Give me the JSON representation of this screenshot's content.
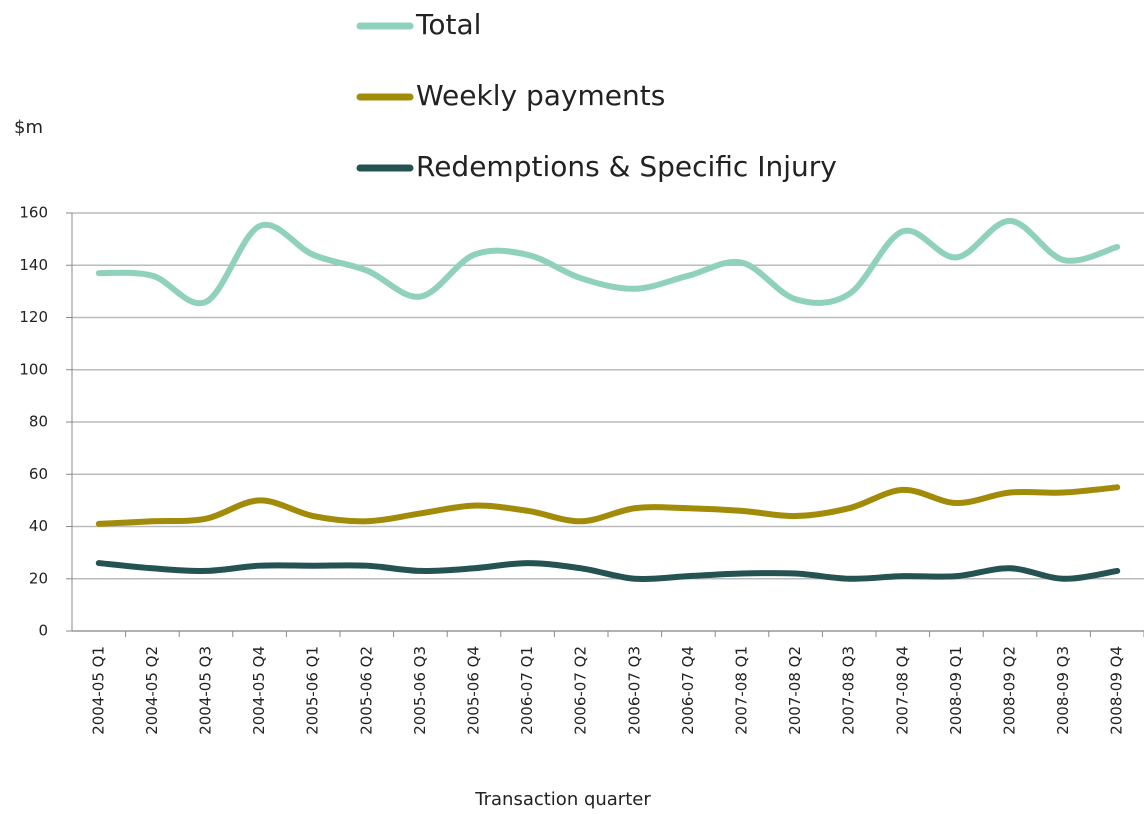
{
  "chart_data": {
    "type": "line",
    "y_label": "$m",
    "x_label": "Transaction quarter",
    "categories": [
      "2004-05 Q1",
      "2004-05 Q2",
      "2004-05 Q3",
      "2004-05 Q4",
      "2005-06 Q1",
      "2005-06 Q2",
      "2005-06 Q3",
      "2005-06 Q4",
      "2006-07 Q1",
      "2006-07 Q2",
      "2006-07 Q3",
      "2006-07 Q4",
      "2007-08 Q1",
      "2007-08 Q2",
      "2007-08 Q3",
      "2007-08 Q4",
      "2008-09 Q1",
      "2008-09 Q2",
      "2008-09 Q3",
      "2008-09 Q4"
    ],
    "series": [
      {
        "name": "Total",
        "color": "#8fd1bd",
        "values": [
          137,
          136,
          126,
          155,
          144,
          138,
          128,
          144,
          144,
          135,
          131,
          136,
          141,
          127,
          129,
          153,
          143,
          157,
          142,
          147
        ]
      },
      {
        "name": "Weekly payments",
        "color": "#a18b08",
        "values": [
          41,
          42,
          43,
          50,
          44,
          42,
          45,
          48,
          46,
          42,
          47,
          47,
          46,
          44,
          47,
          54,
          49,
          53,
          53,
          55
        ]
      },
      {
        "name": "Redemptions & Specific Injury",
        "color": "#255351",
        "values": [
          26,
          24,
          23,
          25,
          25,
          25,
          23,
          24,
          26,
          24,
          20,
          21,
          22,
          22,
          20,
          21,
          21,
          24,
          20,
          23
        ]
      }
    ],
    "ylim": [
      0,
      160
    ],
    "yticks": [
      0,
      20,
      40,
      60,
      80,
      100,
      120,
      140,
      160
    ],
    "grid": true,
    "smooth": true,
    "legend": "top"
  }
}
